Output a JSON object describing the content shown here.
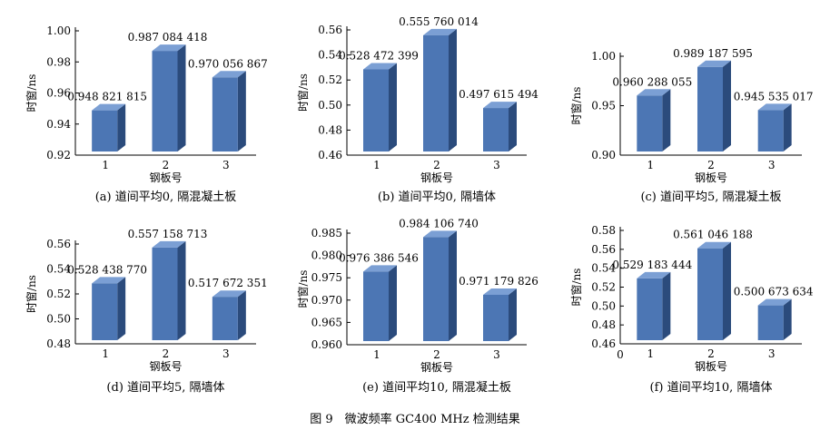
{
  "figure_caption": "图 9　微波频率 GC400 MHz 检测结果",
  "colors": {
    "bar_front": "#4c76b4",
    "bar_side": "#2b4b7c",
    "bar_top": "#7b9fd4",
    "axis": "#000000"
  },
  "chart_data": [
    {
      "type": "bar",
      "caption": "(a) 道间平均0, 隔混凝土板",
      "categories": [
        "1",
        "2",
        "3"
      ],
      "values": [
        0.948821815,
        0.987084418,
        0.970056867
      ],
      "value_labels": [
        "0.948 821 815",
        "0.987 084 418",
        "0.970 056 867"
      ],
      "xlabel": "钢板号",
      "ylabel": "时窗/ns",
      "ylim": [
        0.92,
        1.0
      ],
      "yticks": [
        "0.92",
        "0.94",
        "0.96",
        "0.98",
        "1.00"
      ]
    },
    {
      "type": "bar",
      "caption": "(b) 道间平均0, 隔墙体",
      "categories": [
        "1",
        "2",
        "3"
      ],
      "values": [
        0.528472399,
        0.555760014,
        0.497615494
      ],
      "value_labels": [
        "0.528 472 399",
        "0.555 760 014",
        "0.497 615 494"
      ],
      "xlabel": "钢板号",
      "ylabel": "时窗/ns",
      "ylim": [
        0.46,
        0.56
      ],
      "yticks": [
        "0.46",
        "0.48",
        "0.50",
        "0.52",
        "0.54",
        "0.56"
      ]
    },
    {
      "type": "bar",
      "caption": "(c) 道间平均5, 隔混凝土板",
      "categories": [
        "1",
        "2",
        "3"
      ],
      "values": [
        0.960288055,
        0.989187595,
        0.945535017
      ],
      "value_labels": [
        "0.960 288 055",
        "0.989 187 595",
        "0.945 535 017"
      ],
      "xlabel": "钢板号",
      "ylabel": "时窗/ns",
      "ylim": [
        0.9,
        1.0
      ],
      "yticks": [
        "0.90",
        "0.95",
        "1.00"
      ]
    },
    {
      "type": "bar",
      "caption": "(d) 道间平均5, 隔墙体",
      "categories": [
        "1",
        "2",
        "3"
      ],
      "values": [
        0.52843877,
        0.557158713,
        0.517672351
      ],
      "value_labels": [
        "0.528 438 770",
        "0.557 158 713",
        "0.517 672 351"
      ],
      "xlabel": "钢板号",
      "ylabel": "时窗/ns",
      "ylim": [
        0.48,
        0.56
      ],
      "yticks": [
        "0.48",
        "0.50",
        "0.52",
        "0.54",
        "0.56"
      ]
    },
    {
      "type": "bar",
      "caption": "(e) 道间平均10, 隔混凝土板",
      "categories": [
        "1",
        "2",
        "3"
      ],
      "values": [
        0.976386546,
        0.98410674,
        0.971179826
      ],
      "value_labels": [
        "0.976 386 546",
        "0.984 106 740",
        "0.971 179 826"
      ],
      "xlabel": "钢板号",
      "ylabel": "时窗/ns",
      "ylim": [
        0.96,
        0.985
      ],
      "yticks": [
        "0.960",
        "0.965",
        "0.970",
        "0.975",
        "0.980",
        "0.985"
      ]
    },
    {
      "type": "bar",
      "caption": "(f) 道间平均10, 隔墙体",
      "categories": [
        "1",
        "2",
        "3"
      ],
      "values": [
        0.529183444,
        0.561046188,
        0.500673634
      ],
      "value_labels": [
        "0.529 183 444",
        "0.561 046 188",
        "0.500 673 634"
      ],
      "xlabel": "钢板号",
      "ylabel": "时窗/ns",
      "ylim": [
        0.46,
        0.58
      ],
      "yticks": [
        "0.46",
        "0.48",
        "0.50",
        "0.52",
        "0.54",
        "0.56",
        "0.58"
      ],
      "xorigin_label": "0"
    }
  ]
}
